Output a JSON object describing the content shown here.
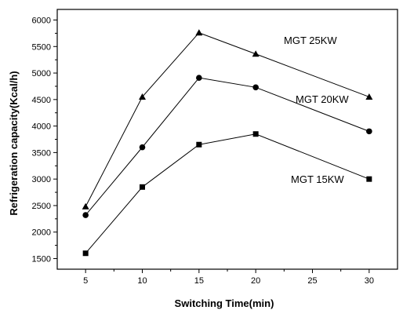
{
  "chart_data": {
    "type": "line",
    "title": "",
    "xlabel": "Switching Time(min)",
    "ylabel": "Refrigeration capacity(Kcal/h)",
    "x": [
      5,
      10,
      15,
      20,
      30
    ],
    "xlim": [
      2.5,
      32.5
    ],
    "ylim": [
      1300,
      6200
    ],
    "x_ticks": [
      5,
      10,
      15,
      20,
      25,
      30
    ],
    "y_ticks": [
      1500,
      2000,
      2500,
      3000,
      3500,
      4000,
      4500,
      5000,
      5500,
      6000
    ],
    "grid": false,
    "series": [
      {
        "name": "MGT 25KW",
        "marker": "triangle",
        "values": [
          2480,
          4550,
          5760,
          5360,
          4550
        ]
      },
      {
        "name": "MGT 20KW",
        "marker": "circle",
        "values": [
          2320,
          3600,
          4910,
          4730,
          3900
        ]
      },
      {
        "name": "MGT 15KW",
        "marker": "square",
        "values": [
          1600,
          2850,
          3650,
          3850,
          3000
        ]
      }
    ],
    "colors": {
      "line": "#000000",
      "axis": "#000000",
      "background": "#ffffff"
    }
  }
}
